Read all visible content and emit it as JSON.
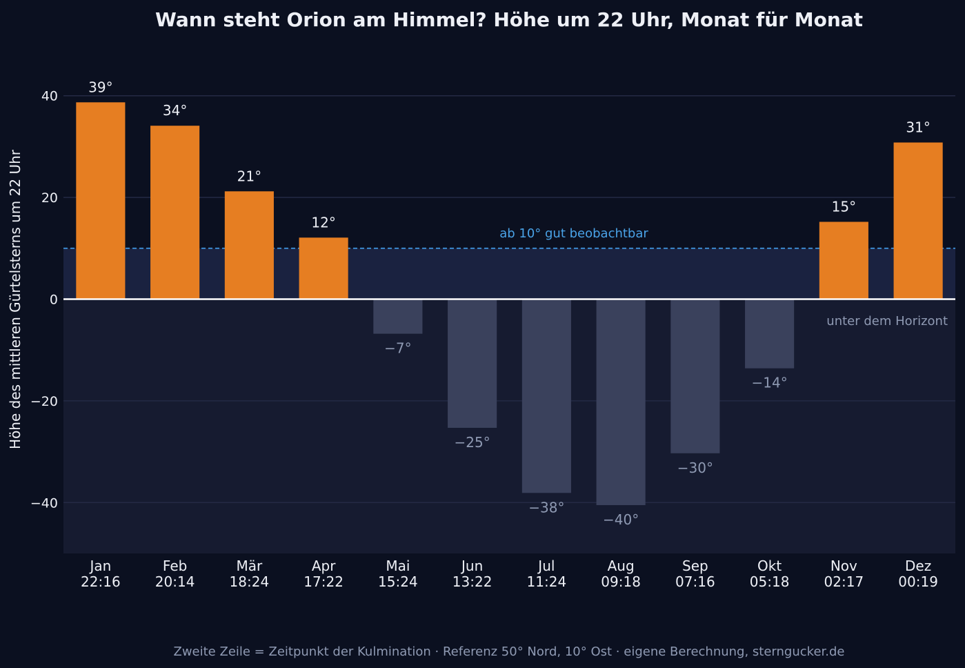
{
  "chart_data": {
    "type": "bar",
    "title": "Wann steht Orion am Himmel? Höhe um 22 Uhr, Monat für Monat",
    "ylabel": "Höhe des mittleren Gürtelsterns um 22 Uhr",
    "xlabel": "",
    "categories": [
      "Jan",
      "Feb",
      "Mär",
      "Apr",
      "Mai",
      "Jun",
      "Jul",
      "Aug",
      "Sep",
      "Okt",
      "Nov",
      "Dez"
    ],
    "culmination_times": [
      "22:16",
      "20:14",
      "18:24",
      "17:22",
      "15:24",
      "13:22",
      "11:24",
      "09:18",
      "07:16",
      "05:18",
      "02:17",
      "00:19"
    ],
    "values": [
      38.7,
      34.1,
      21.2,
      12.1,
      -6.8,
      -25.3,
      -38.1,
      -40.5,
      -30.3,
      -13.6,
      15.2,
      30.8
    ],
    "value_labels": [
      "39°",
      "34°",
      "21°",
      "12°",
      "−7°",
      "−25°",
      "−38°",
      "−40°",
      "−30°",
      "−14°",
      "15°",
      "31°"
    ],
    "ylim": [
      -50,
      50
    ],
    "yticks": [
      -40,
      -20,
      0,
      20,
      40
    ],
    "ytick_labels": [
      "−40",
      "−20",
      "0",
      "20",
      "40"
    ],
    "grid": "horizontal",
    "threshold": {
      "value": 10,
      "label": "ab 10° gut beobachtbar"
    },
    "below_horizon_label": "unter dem Horizont",
    "footnote": "Zweite Zeile = Zeitpunkt der Kulmination · Referenz 50° Nord, 10° Ost · eigene Berechnung, sterngucker.de"
  },
  "colors": {
    "background": "#0b1020",
    "above_bar": "#e67e22",
    "below_bar": "#3a415c",
    "below_zone": "#161b30",
    "low_zone": "#1a2240",
    "grid": "#242a44",
    "zero_line": "#ffffff",
    "threshold": "#3d8fd6",
    "text": "#eef0f6",
    "muted_text": "#8f9ab3"
  }
}
